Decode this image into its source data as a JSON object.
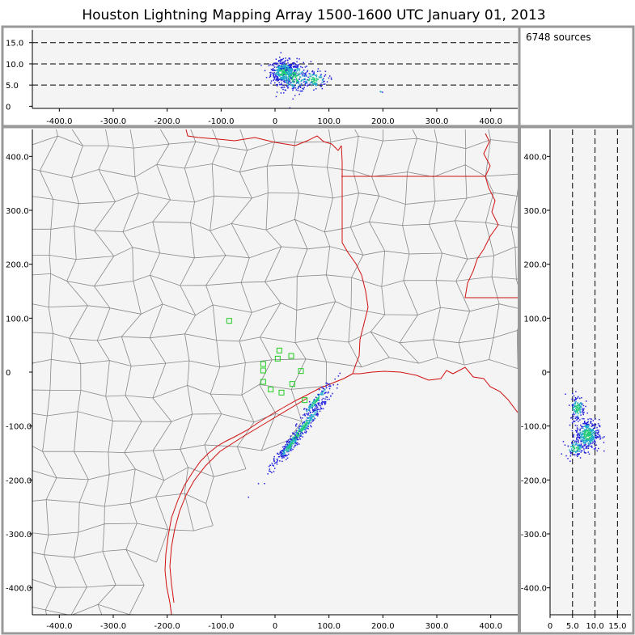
{
  "title": "Houston Lightning Mapping Array   1500-1600 UTC  January 01, 2013",
  "source_count": "6748 sources",
  "colors": {
    "frame": "#999999",
    "plot_bg": "#f4f4f4",
    "county_lines": "#888888",
    "state_coast_lines": "#d01010",
    "station_marker": "#22cc22",
    "density_low": "#2222dd",
    "density_mid": "#22aacc",
    "density_high": "#22cc77"
  },
  "chart_data": [
    {
      "panel": "altitude-vs-east-west",
      "type": "scatter",
      "x_ticks": [
        "-400.0",
        "-300.0",
        "-200.0",
        "-100.0",
        "0",
        "100.0",
        "200.0",
        "300.0",
        "400.0"
      ],
      "x_tick_values": [
        -400,
        -300,
        -200,
        -100,
        0,
        100,
        200,
        300,
        400
      ],
      "y_ticks": [
        "0",
        "5.0",
        "10.0",
        "15.0"
      ],
      "y_tick_values": [
        0,
        5,
        10,
        15
      ],
      "xlim": [
        -450,
        450
      ],
      "ylim": [
        -0.5,
        18
      ],
      "reference_lines": [
        5,
        10,
        15
      ],
      "clusters": [
        {
          "x": 15,
          "y": 8.2,
          "sx": 12,
          "sy": 1.4,
          "n": 420
        },
        {
          "x": 35,
          "y": 7.0,
          "sx": 15,
          "sy": 1.8,
          "n": 240
        },
        {
          "x": 70,
          "y": 6.4,
          "sx": 14,
          "sy": 1.1,
          "n": 110
        },
        {
          "x": 195,
          "y": 3.3,
          "sx": 2,
          "sy": 0.3,
          "n": 3
        }
      ]
    },
    {
      "panel": "plan-view-map",
      "type": "scatter",
      "x_ticks": [
        "-400.0",
        "-300.0",
        "-200.0",
        "-100.0",
        "0",
        "100.0",
        "200.0",
        "300.0",
        "400.0"
      ],
      "x_tick_values": [
        -400,
        -300,
        -200,
        -100,
        0,
        100,
        200,
        300,
        400
      ],
      "y_ticks": [
        "-400.0",
        "-300.0",
        "-200.0",
        "-100.0",
        "0",
        "100.0",
        "200.0",
        "300.0",
        "400.0"
      ],
      "y_tick_values": [
        -400,
        -300,
        -200,
        -100,
        0,
        100,
        200,
        300,
        400
      ],
      "xlim": [
        -450,
        450
      ],
      "ylim": [
        -450,
        450
      ],
      "stations": [
        [
          -85,
          95
        ],
        [
          -22,
          15
        ],
        [
          8,
          40
        ],
        [
          30,
          30
        ],
        [
          5,
          25
        ],
        [
          -22,
          3
        ],
        [
          -22,
          -18
        ],
        [
          -8,
          -32
        ],
        [
          12,
          -38
        ],
        [
          32,
          -22
        ],
        [
          48,
          2
        ],
        [
          55,
          -52
        ]
      ],
      "clusters": [
        {
          "x": 45,
          "y": -110,
          "len": 90,
          "width": 8,
          "angle": 52,
          "n": 420
        },
        {
          "x": 75,
          "y": -52,
          "len": 50,
          "width": 6,
          "angle": 50,
          "n": 130
        },
        {
          "x": 25,
          "y": -138,
          "len": 35,
          "width": 7,
          "angle": 50,
          "n": 90
        }
      ]
    },
    {
      "panel": "north-south-vs-altitude",
      "type": "scatter",
      "x_ticks": [
        "0",
        "5.0",
        "10.0",
        "15.0"
      ],
      "x_tick_values": [
        0,
        5,
        10,
        15
      ],
      "y_ticks": [
        "-400.0",
        "-300.0",
        "-200.0",
        "-100.0",
        "0",
        "100.0",
        "200.0",
        "300.0",
        "400.0"
      ],
      "y_tick_values": [
        -400,
        -300,
        -200,
        -100,
        0,
        100,
        200,
        300,
        400
      ],
      "xlim": [
        0,
        18
      ],
      "ylim": [
        -450,
        450
      ],
      "reference_lines": [
        5,
        10,
        15
      ],
      "clusters": [
        {
          "x": 8.2,
          "y": -115,
          "sx": 1.3,
          "sy": 14,
          "n": 380
        },
        {
          "x": 6.0,
          "y": -65,
          "sx": 0.8,
          "sy": 12,
          "n": 120
        },
        {
          "x": 5.5,
          "y": -140,
          "sx": 1.1,
          "sy": 8,
          "n": 90
        }
      ]
    }
  ]
}
